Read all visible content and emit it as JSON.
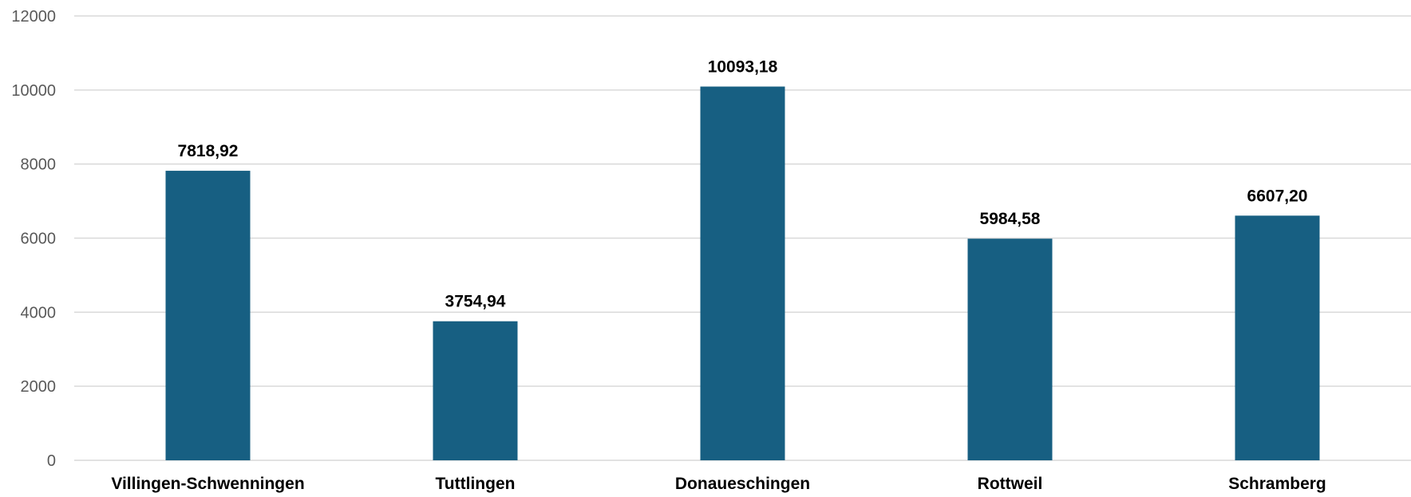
{
  "chart_data": {
    "type": "bar",
    "title": "",
    "xlabel": "",
    "ylabel": "",
    "categories": [
      "Villingen-Schwenningen",
      "Tuttlingen",
      "Donaueschingen",
      "Rottweil",
      "Schramberg"
    ],
    "values": [
      7818.92,
      3754.94,
      10093.18,
      5984.58,
      6607.2
    ],
    "data_labels": [
      "7818,92",
      "3754,94",
      "10093,18",
      "5984,58",
      "6607,20"
    ],
    "ylim": [
      0,
      12000
    ],
    "yticks": [
      0,
      2000,
      4000,
      6000,
      8000,
      10000,
      12000
    ],
    "ytick_labels": [
      "0",
      "2000",
      "4000",
      "6000",
      "8000",
      "10000",
      "12000"
    ],
    "grid": true,
    "legend": "none",
    "colors": {
      "bar": "#175f82",
      "grid": "#d9d9d9"
    }
  }
}
